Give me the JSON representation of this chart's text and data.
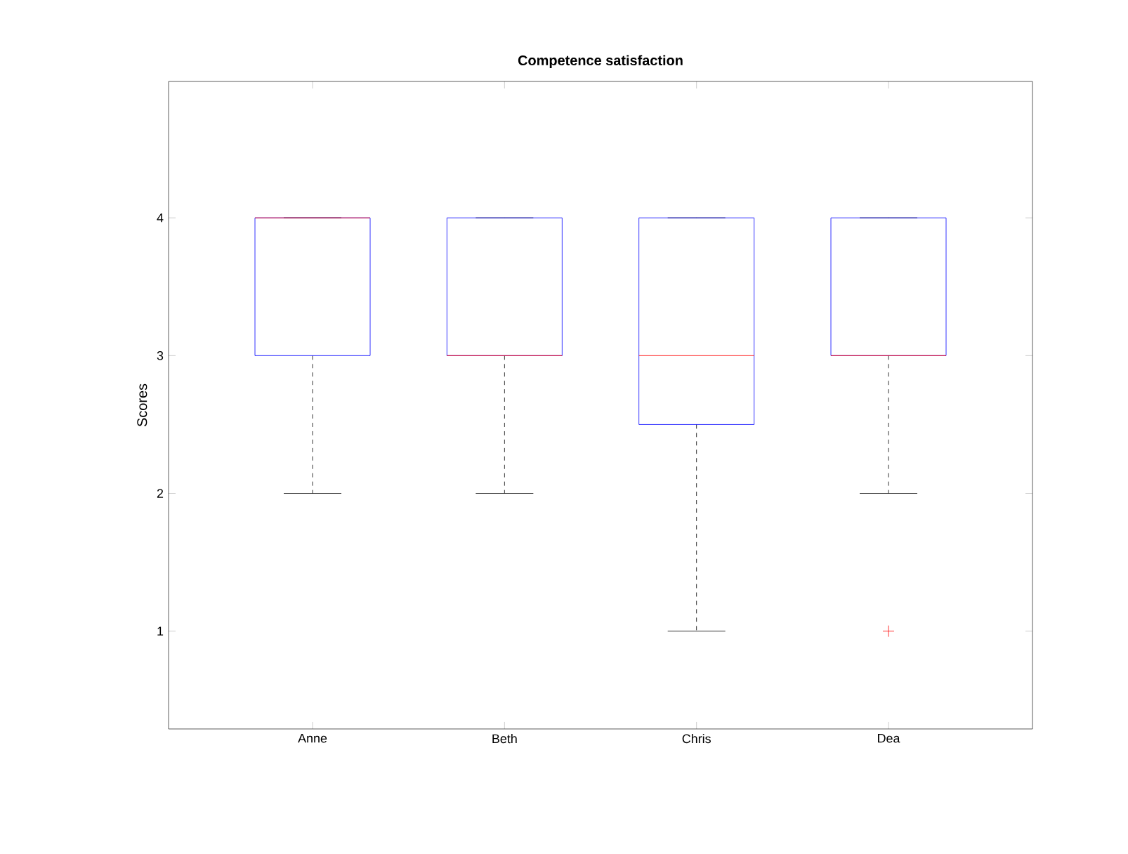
{
  "chart_data": {
    "type": "box",
    "title": "Competence satisfaction",
    "ylabel": "Scores",
    "categories": [
      "Anne",
      "Beth",
      "Chris",
      "Dea"
    ],
    "boxes": [
      {
        "low": 2,
        "q1": 3,
        "median": 4,
        "q3": 4,
        "high": 4
      },
      {
        "low": 2,
        "q1": 3,
        "median": 3,
        "q3": 4,
        "high": 4
      },
      {
        "low": 1,
        "q1": 2.5,
        "median": 3,
        "q3": 4,
        "high": 4
      },
      {
        "low": 2,
        "q1": 3,
        "median": 3,
        "q3": 4,
        "high": 4,
        "outliers": [
          1
        ]
      }
    ],
    "color": "#0000ff",
    "ylim": [
      0.29,
      4.99
    ],
    "yticks": [
      1,
      2,
      3,
      4
    ]
  }
}
